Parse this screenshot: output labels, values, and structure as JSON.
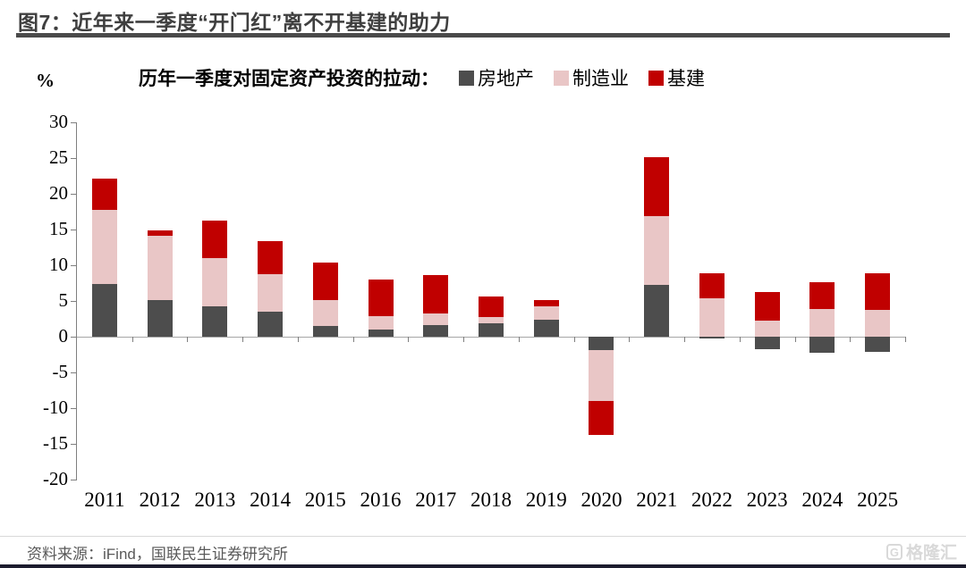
{
  "page": {
    "title": "图7：近年来一季度“开门红”离不开基建的助力",
    "unit_label": "%"
  },
  "footer": {
    "source": "资料来源：iFind，国联民生证券研究所",
    "watermark": "格隆汇",
    "watermark_icon": "G"
  },
  "chart_data": {
    "type": "bar",
    "stacked": true,
    "title": "历年一季度对固定资产投资的拉动：",
    "unit": "%",
    "categories": [
      "2011",
      "2012",
      "2013",
      "2014",
      "2015",
      "2016",
      "2017",
      "2018",
      "2019",
      "2020",
      "2021",
      "2022",
      "2023",
      "2024",
      "2025"
    ],
    "series": [
      {
        "name": "房地产",
        "color": "#4d4d4d",
        "values": [
          7.4,
          5.1,
          4.3,
          3.5,
          1.5,
          1.0,
          1.6,
          1.9,
          2.4,
          -1.9,
          7.2,
          -0.3,
          -1.7,
          -2.3,
          -2.1
        ]
      },
      {
        "name": "制造业",
        "color": "#e9c6c6",
        "values": [
          10.4,
          9.0,
          6.7,
          5.3,
          3.6,
          1.9,
          1.7,
          0.9,
          1.8,
          -7.1,
          9.7,
          5.4,
          2.2,
          3.9,
          3.8
        ]
      },
      {
        "name": "基建",
        "color": "#c00000",
        "values": [
          4.3,
          0.8,
          5.3,
          4.6,
          5.3,
          5.1,
          5.3,
          2.8,
          0.9,
          -4.8,
          8.2,
          3.5,
          4.0,
          3.7,
          5.1
        ]
      }
    ],
    "totals": [
      22.1,
      14.9,
      16.3,
      13.4,
      10.4,
      8.0,
      8.6,
      5.6,
      5.1,
      -13.8,
      25.1,
      8.6,
      4.5,
      5.3,
      6.8
    ],
    "ylabel": "%",
    "ylim": [
      -20,
      30
    ],
    "yticks": [
      30,
      25,
      20,
      15,
      10,
      5,
      0,
      -5,
      -10,
      -15,
      -20
    ],
    "grid": false,
    "legend_position": "top"
  }
}
